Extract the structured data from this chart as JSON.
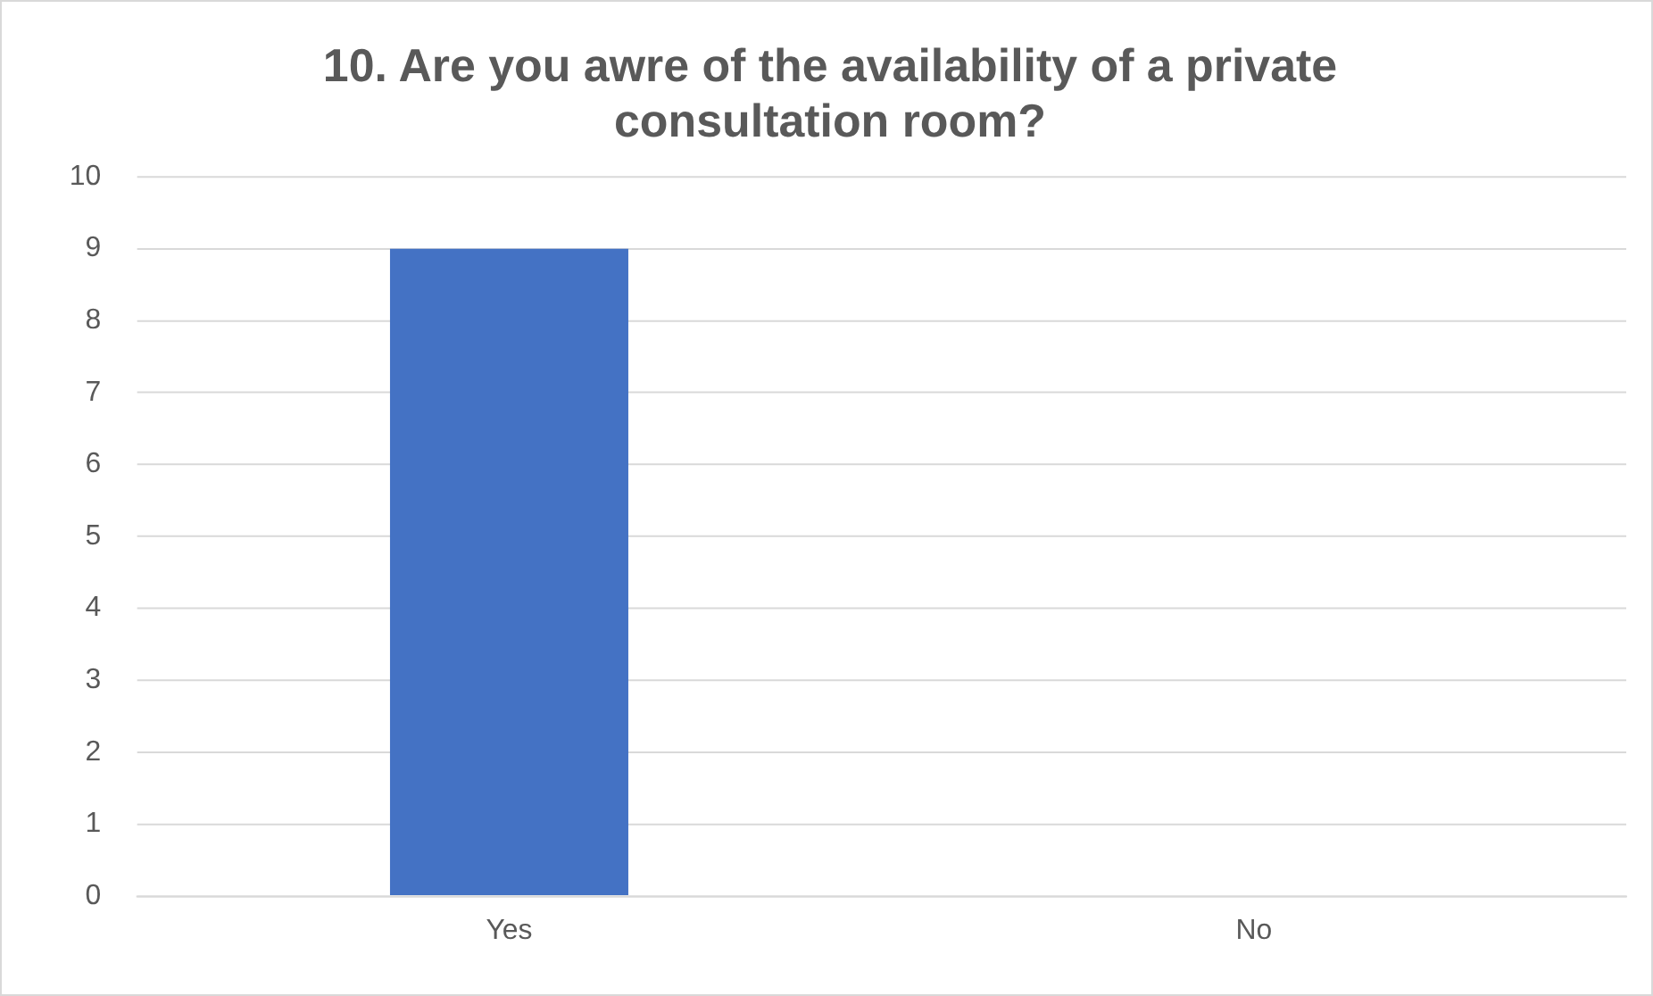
{
  "chart_data": {
    "type": "bar",
    "title": "10. Are you awre of the availability of a private consultation room?",
    "categories": [
      "Yes",
      "No"
    ],
    "values": [
      9,
      0
    ],
    "color": "#4472c4",
    "ylim": [
      0,
      10
    ],
    "yticks": [
      0,
      1,
      2,
      3,
      4,
      5,
      6,
      7,
      8,
      9,
      10
    ],
    "grid": "y",
    "legend": false
  }
}
